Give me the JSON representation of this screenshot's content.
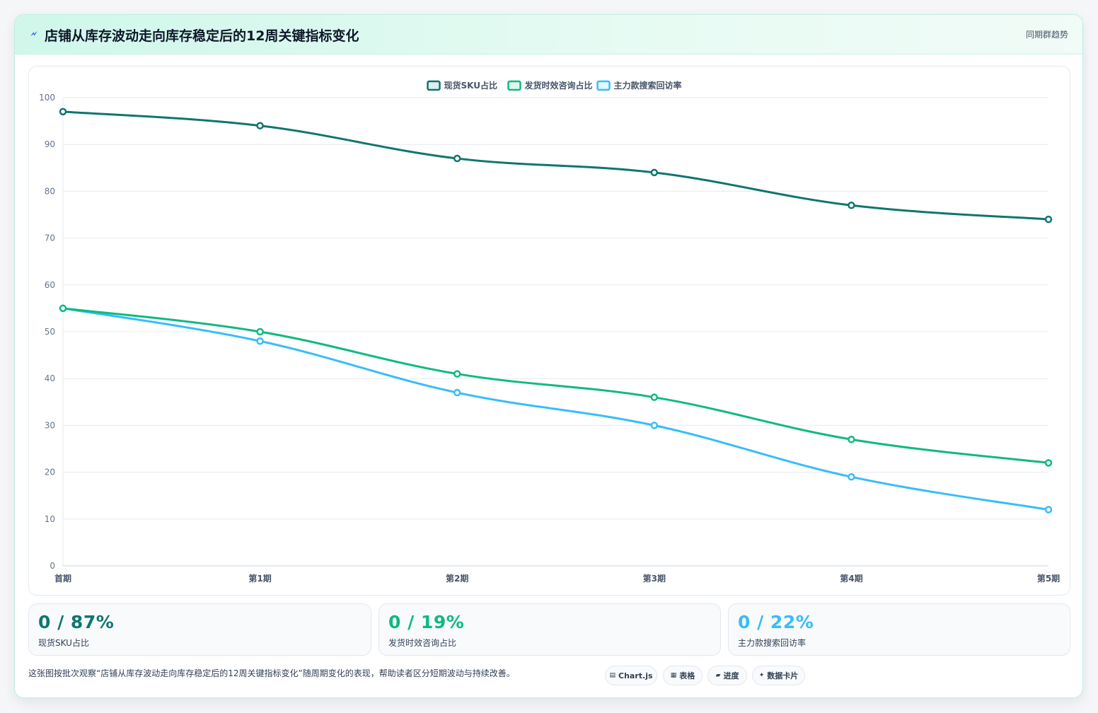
{
  "header": {
    "title": "店铺从库存波动走向库存稳定后的12周关键指标变化",
    "tag": "同期群趋势",
    "icon": "lightning-icon"
  },
  "chart_data": {
    "type": "line",
    "categories": [
      "首期",
      "第1期",
      "第2期",
      "第3期",
      "第4期",
      "第5期"
    ],
    "ylim": [
      0,
      100
    ],
    "yticks": [
      0,
      10,
      20,
      30,
      40,
      50,
      60,
      70,
      80,
      90,
      100
    ],
    "grid": true,
    "legend": "top-center",
    "series": [
      {
        "name": "现货SKU占比",
        "color": "#0f766e",
        "values": [
          97,
          94,
          87,
          84,
          77,
          74
        ]
      },
      {
        "name": "发货时效咨询占比",
        "color": "#10b981",
        "values": [
          55,
          50,
          41,
          36,
          27,
          22
        ]
      },
      {
        "name": "主力款搜索回访率",
        "color": "#38bdf8",
        "values": [
          55,
          48,
          37,
          30,
          19,
          12
        ]
      }
    ]
  },
  "stats": [
    {
      "value": "0 / 87%",
      "label": "现货SKU占比",
      "color": "#0f766e"
    },
    {
      "value": "0 / 19%",
      "label": "发货时效咨询占比",
      "color": "#10b981"
    },
    {
      "value": "0 / 22%",
      "label": "主力款搜索回访率",
      "color": "#38bdf8"
    }
  ],
  "footer": {
    "note": "这张图按批次观察“店铺从库存波动走向库存稳定后的12周关键指标变化”随周期变化的表现，帮助读者区分短期波动与持续改善。",
    "chips": [
      {
        "icon": "▤",
        "label": "Chart.js"
      },
      {
        "icon": "▦",
        "label": "表格"
      },
      {
        "icon": "▰",
        "label": "进度"
      },
      {
        "icon": "✦",
        "label": "数据卡片"
      }
    ]
  }
}
